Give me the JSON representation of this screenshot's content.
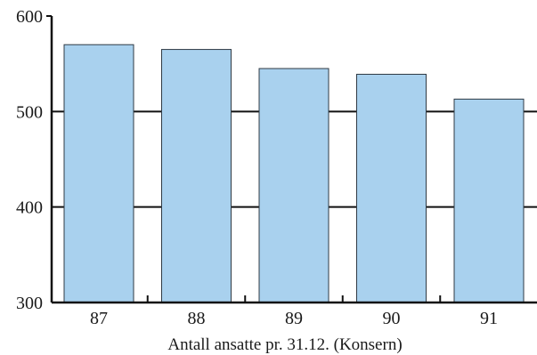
{
  "chart_data": {
    "type": "bar",
    "categories": [
      "87",
      "88",
      "89",
      "90",
      "91"
    ],
    "values": [
      570,
      565,
      545,
      539,
      513
    ],
    "ylim": [
      300,
      600
    ],
    "yticks": [
      "300",
      "400",
      "500",
      "600"
    ],
    "grid": true,
    "xlabel": "Antall ansatte pr. 31.12. (Konsern)",
    "ylabel": "",
    "title": "",
    "colors": {
      "bar_fill": "#a9d1ee",
      "bar_stroke": "#2f3a44",
      "axis": "#111111"
    }
  }
}
